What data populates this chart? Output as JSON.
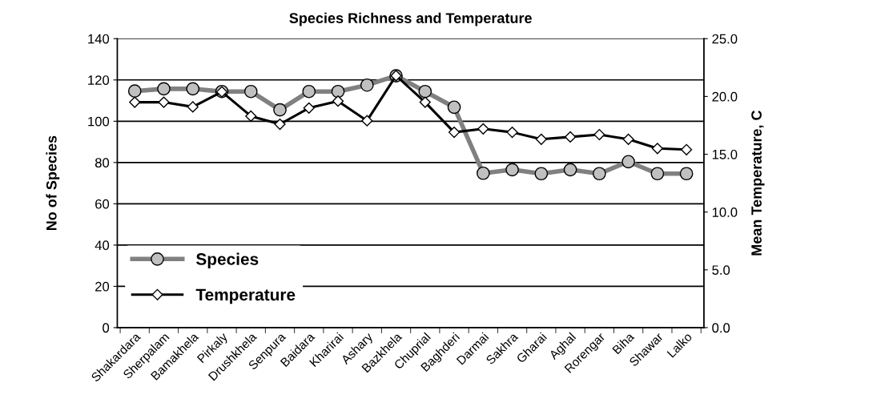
{
  "chart_data": {
    "type": "line",
    "title": "Species Richness and Temperature",
    "ylabel": "No of Species",
    "y2label": "Mean Temperature, C",
    "categories": [
      "Shakardara",
      "Sherpalam",
      "Bamakhela",
      "Pirkaly",
      "Drushkhela",
      "Senpura",
      "Baidara",
      "Kharirai",
      "Ashary",
      "Bazkhela",
      "Chuprial",
      "Baghderi",
      "Darmai",
      "Sakhra",
      "Gharai",
      "Aghal",
      "Rorengar",
      "Biha",
      "Shawar",
      "Lalko"
    ],
    "series": [
      {
        "name": "Species",
        "color": "#808080",
        "marker": "circle",
        "values": [
          114.6,
          115.7,
          115.7,
          114.4,
          114.4,
          105.5,
          114.4,
          114.4,
          117.5,
          122,
          114.4,
          106.8,
          74.8,
          76.5,
          74.6,
          76.5,
          74.6,
          80.4,
          74.6,
          74.6
        ]
      },
      {
        "name": "Temperature",
        "color": "#000000",
        "marker": "diamond",
        "axis": "y2",
        "values": [
          19.5,
          19.5,
          19.1,
          20.4,
          18.3,
          17.6,
          19.0,
          19.6,
          17.9,
          21.8,
          19.5,
          16.9,
          17.2,
          16.9,
          16.3,
          16.5,
          16.7,
          16.3,
          15.5,
          15.4
        ]
      }
    ],
    "ylim": [
      0,
      140
    ],
    "yticks": [
      0,
      20,
      40,
      60,
      80,
      100,
      120,
      140
    ],
    "y2lim": [
      0,
      25
    ],
    "y2ticks": [
      {
        "value": 0,
        "label": "0.0"
      },
      {
        "value": 5,
        "label": "5.0"
      },
      {
        "value": 10,
        "label": "10.0"
      },
      {
        "value": 15,
        "label": "15.0"
      },
      {
        "value": 20,
        "label": "20.0"
      },
      {
        "value": 25,
        "label": "25.0"
      }
    ],
    "grid": "y",
    "legend": "bottom left",
    "line_style": "solid"
  }
}
